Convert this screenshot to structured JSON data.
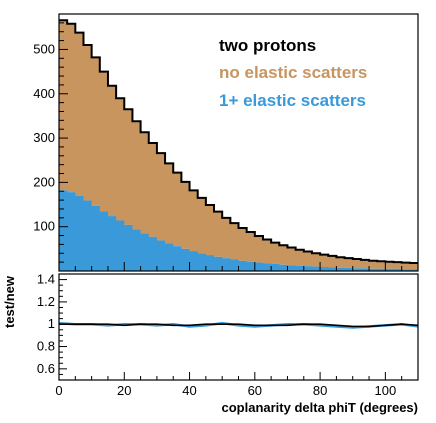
{
  "chart_data": [
    {
      "type": "bar",
      "subtype": "stacked-histogram",
      "title": "",
      "xlabel": "",
      "ylabel": "",
      "xlim": [
        0,
        110
      ],
      "ylim": [
        0,
        580
      ],
      "bin_width": 2.5,
      "x_ticks": [
        "0",
        "20",
        "40",
        "60",
        "80",
        "100"
      ],
      "y_ticks": [
        "100",
        "200",
        "300",
        "400",
        "500"
      ],
      "y_tick_values": [
        100,
        200,
        300,
        400,
        500
      ],
      "legend": {
        "position": "top-right",
        "entries": [
          {
            "label": "two protons",
            "color": "#000000"
          },
          {
            "label": "no elastic scatters",
            "color": "#c8955f"
          },
          {
            "label": "1+ elastic scatters",
            "color": "#3a9ad9"
          }
        ]
      },
      "series": [
        {
          "name": "two protons",
          "style": "step-outline",
          "color": "#000000",
          "values": [
            566,
            558,
            538,
            510,
            482,
            450,
            418,
            390,
            365,
            338,
            313,
            289,
            266,
            243,
            222,
            201,
            182,
            165,
            149,
            134,
            120,
            108,
            97,
            88,
            79,
            71,
            64,
            58,
            53,
            48,
            44,
            40,
            37,
            34,
            31,
            29,
            27,
            25,
            23,
            22,
            21,
            20,
            19,
            18
          ]
        },
        {
          "name": "no elastic scatters",
          "style": "fill",
          "color": "#c8955f",
          "values": [
            384,
            380,
            368,
            351,
            335,
            315,
            294,
            276,
            261,
            244,
            228,
            212,
            197,
            181,
            166,
            151,
            137,
            125,
            113,
            102,
            91,
            82,
            74,
            67,
            60,
            54,
            48,
            44,
            40,
            36,
            33,
            30,
            28,
            26,
            24,
            22,
            21,
            19,
            18,
            17,
            16,
            15,
            15,
            14
          ]
        },
        {
          "name": "1+ elastic scatters",
          "style": "fill",
          "color": "#3a9ad9",
          "values": [
            182,
            178,
            170,
            159,
            147,
            135,
            124,
            114,
            104,
            94,
            85,
            77,
            69,
            62,
            56,
            50,
            45,
            40,
            36,
            32,
            29,
            26,
            23,
            21,
            19,
            17,
            16,
            14,
            13,
            12,
            11,
            10,
            9,
            8,
            7,
            7,
            6,
            6,
            5,
            5,
            5,
            5,
            4,
            4
          ]
        }
      ]
    },
    {
      "type": "line",
      "title": "",
      "xlabel": "coplanarity delta phiT (degrees)",
      "ylabel": "test/new",
      "xlim": [
        0,
        110
      ],
      "ylim": [
        0.5,
        1.45
      ],
      "x_ticks": [
        "0",
        "20",
        "40",
        "60",
        "80",
        "100"
      ],
      "x_tick_values": [
        0,
        20,
        40,
        60,
        80,
        100
      ],
      "y_ticks": [
        "0.6",
        "0.8",
        "1",
        "1.2",
        "1.4"
      ],
      "y_tick_values": [
        0.6,
        0.8,
        1.0,
        1.2,
        1.4
      ],
      "x": [
        0,
        5,
        10,
        15,
        20,
        25,
        30,
        35,
        40,
        45,
        50,
        55,
        60,
        65,
        70,
        75,
        80,
        85,
        90,
        95,
        100,
        105,
        110
      ],
      "series": [
        {
          "name": "",
          "color": "#3a9ad9",
          "values": [
            1.01,
            1.0,
            1.0,
            0.99,
            1.0,
            1.0,
            0.99,
            1.0,
            0.98,
            0.99,
            1.01,
            0.99,
            0.98,
            0.99,
            1.0,
            1.0,
            0.99,
            0.98,
            0.97,
            0.98,
            0.99,
            1.0,
            0.98
          ]
        },
        {
          "name": "",
          "color": "#000000",
          "values": [
            1.0,
            1.0,
            1.0,
            1.0,
            0.99,
            1.0,
            1.0,
            0.99,
            0.99,
            1.0,
            1.0,
            1.0,
            0.99,
            0.99,
            0.99,
            1.0,
            1.0,
            0.99,
            0.98,
            0.98,
            0.99,
            1.0,
            0.99
          ]
        }
      ]
    }
  ]
}
